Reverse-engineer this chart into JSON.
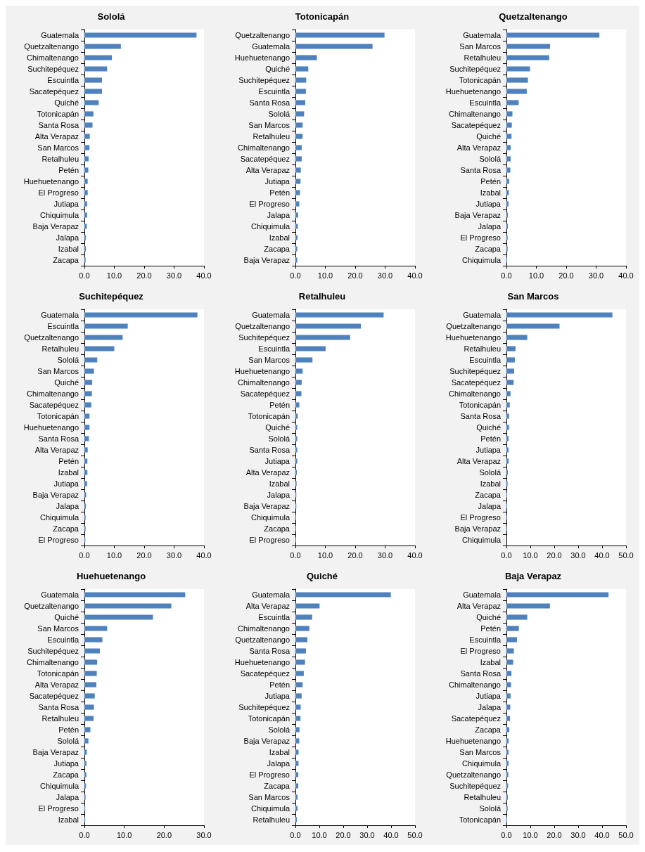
{
  "chart_data": [
    {
      "type": "bar",
      "orientation": "horizontal",
      "title": "Sololá",
      "color": "#4f81bd",
      "grid": false,
      "categories": [
        "Guatemala",
        "Quetzaltenango",
        "Chimaltenango",
        "Suchitepéquez",
        "Escuintla",
        "Sacatepéquez",
        "Quiché",
        "Totonicapán",
        "Santa Rosa",
        "Alta Verapaz",
        "San Marcos",
        "Retalhuleu",
        "Petén",
        "Huehuetenango",
        "El Progreso",
        "Jutiapa",
        "Chiquimula",
        "Baja Verapaz",
        "Jalapa",
        "Izabal",
        "Zacapa"
      ],
      "values": [
        37.5,
        12.2,
        9.2,
        7.6,
        5.9,
        5.9,
        4.8,
        3.0,
        2.7,
        1.8,
        1.7,
        1.4,
        1.3,
        1.1,
        1.1,
        0.9,
        0.9,
        0.8,
        0.5,
        0.5,
        0.4
      ],
      "xlim": [
        0,
        40
      ],
      "xticks": [
        {
          "value": 0,
          "label": "0.0"
        },
        {
          "value": 10,
          "label": "10.0"
        },
        {
          "value": 20,
          "label": "20.0"
        },
        {
          "value": 30,
          "label": "30.0"
        },
        {
          "value": 40,
          "label": "40.0"
        }
      ]
    },
    {
      "type": "bar",
      "orientation": "horizontal",
      "title": "Totonicapán",
      "color": "#4f81bd",
      "grid": false,
      "categories": [
        "Quetzaltenango",
        "Guatemala",
        "Huehuetenango",
        "Quiché",
        "Suchitepéquez",
        "Escuintla",
        "Santa Rosa",
        "Sololá",
        "San Marcos",
        "Retalhuleu",
        "Chimaltenango",
        "Sacatepéquez",
        "Alta Verapaz",
        "Jutiapa",
        "Petén",
        "El Progreso",
        "Jalapa",
        "Chiquimula",
        "Izabal",
        "Zacapa",
        "Baja Verapaz"
      ],
      "values": [
        29.8,
        25.8,
        7.2,
        4.3,
        3.6,
        3.5,
        3.3,
        2.9,
        2.4,
        2.4,
        2.1,
        2.1,
        1.8,
        1.7,
        1.5,
        1.3,
        0.9,
        0.8,
        0.7,
        0.6,
        0.6
      ],
      "xlim": [
        0,
        40
      ],
      "xticks": [
        {
          "value": 0,
          "label": "0.0"
        },
        {
          "value": 10,
          "label": "10.0"
        },
        {
          "value": 20,
          "label": "20.0"
        },
        {
          "value": 30,
          "label": "30.0"
        },
        {
          "value": 40,
          "label": "40.0"
        }
      ]
    },
    {
      "type": "bar",
      "orientation": "horizontal",
      "title": "Quetzaltenango",
      "color": "#4f81bd",
      "grid": false,
      "categories": [
        "Guatemala",
        "San Marcos",
        "Retalhuleu",
        "Suchitepéquez",
        "Totonicapán",
        "Huehuetenango",
        "Escuintla",
        "Chimaltenango",
        "Sacatepéquez",
        "Quiché",
        "Alta Verapaz",
        "Sololá",
        "Santa Rosa",
        "Petén",
        "Izabal",
        "Jutiapa",
        "Baja Verapaz",
        "Jalapa",
        "El Progreso",
        "Zacapa",
        "Chiquimula"
      ],
      "values": [
        31.1,
        14.6,
        14.3,
        7.9,
        7.2,
        6.8,
        4.1,
        2.0,
        1.8,
        1.7,
        1.4,
        1.4,
        1.3,
        0.9,
        0.8,
        0.7,
        0.5,
        0.5,
        0.4,
        0.4,
        0.2
      ],
      "xlim": [
        0,
        40
      ],
      "xticks": [
        {
          "value": 0,
          "label": "0.0"
        },
        {
          "value": 10,
          "label": "10.0"
        },
        {
          "value": 20,
          "label": "20.0"
        },
        {
          "value": 30,
          "label": "30.0"
        },
        {
          "value": 40,
          "label": "40.0"
        }
      ]
    },
    {
      "type": "bar",
      "orientation": "horizontal",
      "title": "Suchitepéquez",
      "color": "#4f81bd",
      "grid": false,
      "categories": [
        "Guatemala",
        "Escuintla",
        "Quetzaltenango",
        "Retalhuleu",
        "Sololá",
        "San Marcos",
        "Quiché",
        "Chimaltenango",
        "Sacatepéquez",
        "Totonicapán",
        "Huehuetenango",
        "Santa Rosa",
        "Alta Verapaz",
        "Petén",
        "Izabal",
        "Jutiapa",
        "Baja Verapaz",
        "Jalapa",
        "Chiquimula",
        "Zacapa",
        "El Progreso"
      ],
      "values": [
        37.8,
        14.5,
        12.8,
        10.0,
        4.3,
        3.2,
        2.6,
        2.5,
        2.3,
        1.7,
        1.7,
        1.5,
        1.1,
        1.0,
        1.0,
        0.9,
        0.6,
        0.5,
        0.4,
        0.4,
        0.3
      ],
      "xlim": [
        0,
        40
      ],
      "xticks": [
        {
          "value": 0,
          "label": "0.0"
        },
        {
          "value": 10,
          "label": "10.0"
        },
        {
          "value": 20,
          "label": "20.0"
        },
        {
          "value": 30,
          "label": "30.0"
        },
        {
          "value": 40,
          "label": "40.0"
        }
      ]
    },
    {
      "type": "bar",
      "orientation": "horizontal",
      "title": "Retalhuleu",
      "color": "#4f81bd",
      "grid": false,
      "categories": [
        "Guatemala",
        "Quetzaltenango",
        "Suchitepéquez",
        "Escuintla",
        "San Marcos",
        "Huehuetenango",
        "Chimaltenango",
        "Sacatepéquez",
        "Petén",
        "Totonicapán",
        "Quiché",
        "Sololá",
        "Santa Rosa",
        "Jutiapa",
        "Alta Verapaz",
        "Izabal",
        "Jalapa",
        "Baja Verapaz",
        "Chiquimula",
        "Zacapa",
        "El Progreso"
      ],
      "values": [
        29.5,
        21.9,
        18.3,
        10.1,
        5.7,
        2.4,
        2.1,
        2.0,
        1.3,
        0.8,
        0.6,
        0.6,
        0.6,
        0.6,
        0.5,
        0.4,
        0.3,
        0.3,
        0.2,
        0.2,
        0.2
      ],
      "xlim": [
        0,
        40
      ],
      "xticks": [
        {
          "value": 0,
          "label": "0.0"
        },
        {
          "value": 10,
          "label": "10.0"
        },
        {
          "value": 20,
          "label": "20.0"
        },
        {
          "value": 30,
          "label": "30.0"
        },
        {
          "value": 40,
          "label": "40.0"
        }
      ]
    },
    {
      "type": "bar",
      "orientation": "horizontal",
      "title": "San Marcos",
      "color": "#4f81bd",
      "grid": false,
      "categories": [
        "Guatemala",
        "Quetzaltenango",
        "Huehuetenango",
        "Retalhuleu",
        "Escuintla",
        "Suchitepéquez",
        "Sacatepéquez",
        "Chimaltenango",
        "Totonicapán",
        "Santa Rosa",
        "Quiché",
        "Petén",
        "Jutiapa",
        "Alta Verapaz",
        "Sololá",
        "Izabal",
        "Zacapa",
        "Jalapa",
        "El Progreso",
        "Baja Verapaz",
        "Chiquimula"
      ],
      "values": [
        44.3,
        22.2,
        8.7,
        3.8,
        3.5,
        3.2,
        3.0,
        1.7,
        1.4,
        1.1,
        1.1,
        0.9,
        0.9,
        0.9,
        0.6,
        0.5,
        0.3,
        0.3,
        0.2,
        0.2,
        null
      ],
      "xlim": [
        0,
        50
      ],
      "xticks": [
        {
          "value": 0,
          "label": "0.0"
        },
        {
          "value": 10,
          "label": "10.0"
        },
        {
          "value": 20,
          "label": "20.0"
        },
        {
          "value": 30,
          "label": "30.0"
        },
        {
          "value": 40,
          "label": "40.0"
        },
        {
          "value": 50,
          "label": "50.0"
        }
      ]
    },
    {
      "type": "bar",
      "orientation": "horizontal",
      "title": "Huehuetenango",
      "color": "#4f81bd",
      "grid": false,
      "categories": [
        "Guatemala",
        "Quetzaltenango",
        "Quiché",
        "San Marcos",
        "Escuintla",
        "Suchitepéquez",
        "Chimaltenango",
        "Totonicapán",
        "Alta Verapaz",
        "Sacatepéquez",
        "Santa Rosa",
        "Retalhuleu",
        "Petén",
        "Sololá",
        "Baja Verapaz",
        "Jutiapa",
        "Zacapa",
        "Chiquimula",
        "Jalapa",
        "El Progreso",
        "Izabal"
      ],
      "values": [
        25.3,
        21.8,
        17.2,
        5.7,
        4.5,
        3.9,
        3.2,
        3.1,
        3.0,
        2.6,
        2.4,
        2.3,
        1.5,
        1.0,
        0.6,
        0.5,
        0.5,
        0.4,
        0.3,
        0.2,
        0.2
      ],
      "xlim": [
        0,
        30
      ],
      "xticks": [
        {
          "value": 0,
          "label": "0.0"
        },
        {
          "value": 10,
          "label": "10.0"
        },
        {
          "value": 20,
          "label": "20.0"
        },
        {
          "value": 30,
          "label": "30.0"
        }
      ]
    },
    {
      "type": "bar",
      "orientation": "horizontal",
      "title": "Quiché",
      "color": "#4f81bd",
      "grid": false,
      "categories": [
        "Guatemala",
        "Alta Verapaz",
        "Escuintla",
        "Chimaltenango",
        "Quetzaltenango",
        "Santa Rosa",
        "Huehuetenango",
        "Sacatepéquez",
        "Petén",
        "Jutiapa",
        "Suchitepéquez",
        "Totonicapán",
        "Sololá",
        "Baja Verapaz",
        "Izabal",
        "Jalapa",
        "El Progreso",
        "Zacapa",
        "San Marcos",
        "Chiquimula",
        "Retalhuleu"
      ],
      "values": [
        39.9,
        10.1,
        7.0,
        5.8,
        5.0,
        4.4,
        4.0,
        3.5,
        3.0,
        2.6,
        2.2,
        2.1,
        1.7,
        1.6,
        1.3,
        1.3,
        1.2,
        1.2,
        0.9,
        0.9,
        0.6
      ],
      "xlim": [
        0,
        50
      ],
      "xticks": [
        {
          "value": 0,
          "label": "0.0"
        },
        {
          "value": 10,
          "label": "10.0"
        },
        {
          "value": 20,
          "label": "20.0"
        },
        {
          "value": 30,
          "label": "30.0"
        },
        {
          "value": 40,
          "label": "40.0"
        },
        {
          "value": 50,
          "label": "50.0"
        }
      ]
    },
    {
      "type": "bar",
      "orientation": "horizontal",
      "title": "Baja Verapaz",
      "color": "#4f81bd",
      "grid": false,
      "categories": [
        "Guatemala",
        "Alta Verapaz",
        "Quiché",
        "Petén",
        "Escuintla",
        "El Progreso",
        "Izabal",
        "Santa Rosa",
        "Chimaltenango",
        "Jutiapa",
        "Jalapa",
        "Sacatepéquez",
        "Zacapa",
        "Huehuetenango",
        "San Marcos",
        "Chiquimula",
        "Quetzaltenango",
        "Suchitepéquez",
        "Retalhuleu",
        "Sololá",
        "Totonicapán"
      ],
      "values": [
        42.7,
        18.2,
        8.7,
        5.2,
        4.4,
        3.1,
        2.8,
        2.1,
        1.9,
        1.7,
        1.6,
        1.5,
        1.2,
        0.9,
        0.9,
        0.9,
        0.8,
        0.7,
        0.6,
        0.5,
        0.3
      ],
      "xlim": [
        0,
        50
      ],
      "xticks": [
        {
          "value": 0,
          "label": "0.0"
        },
        {
          "value": 10,
          "label": "10.0"
        },
        {
          "value": 20,
          "label": "20.0"
        },
        {
          "value": 30,
          "label": "30.0"
        },
        {
          "value": 40,
          "label": "40.0"
        },
        {
          "value": 50,
          "label": "50.0"
        }
      ]
    }
  ]
}
